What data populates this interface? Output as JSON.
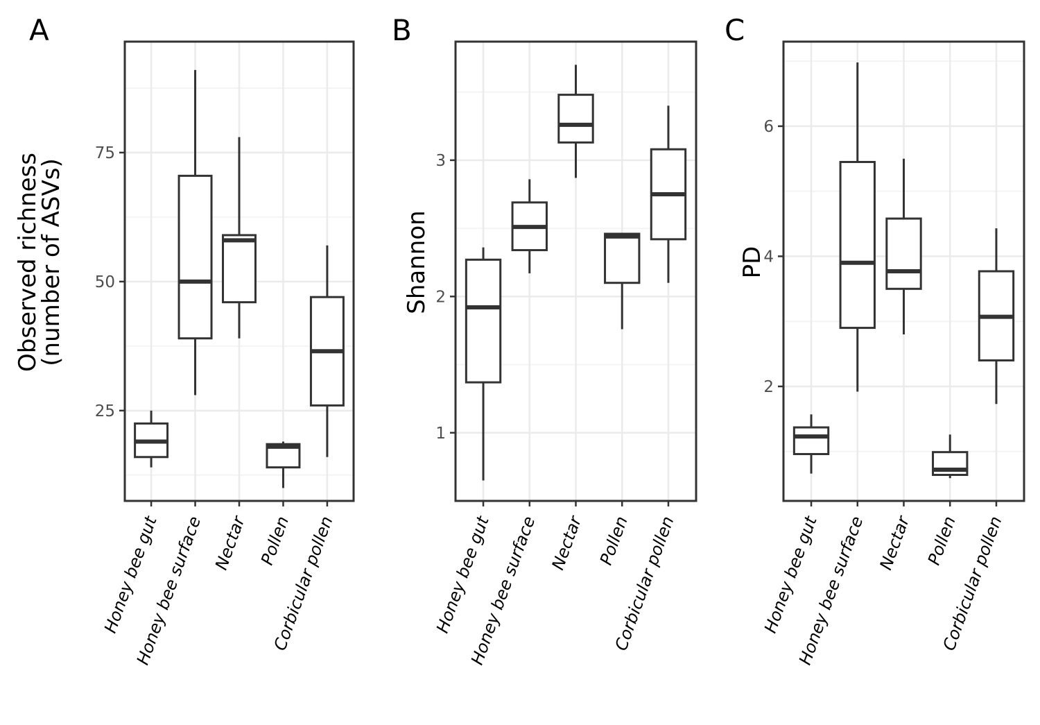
{
  "chart_data": [
    {
      "type": "box",
      "panel": "A",
      "ylabel_lines": [
        "Observed richness",
        "(number of ASVs)"
      ],
      "ylim": [
        7.5,
        96.5
      ],
      "yticks": [
        25,
        50,
        75
      ],
      "ytick_labels": [
        "25",
        "50",
        "75"
      ],
      "categories": [
        "Honey bee gut",
        "Honey bee surface",
        "Nectar",
        "Pollen",
        "Corbicular pollen"
      ],
      "boxes": [
        {
          "min": 14,
          "q1": 16,
          "median": 19,
          "q3": 22.5,
          "max": 25
        },
        {
          "min": 28,
          "q1": 39,
          "median": 50,
          "q3": 70.5,
          "max": 91
        },
        {
          "min": 39,
          "q1": 46,
          "median": 58,
          "q3": 59,
          "max": 78
        },
        {
          "min": 10,
          "q1": 14,
          "median": 18,
          "q3": 18.5,
          "max": 19
        },
        {
          "min": 16,
          "q1": 26,
          "median": 36.5,
          "q3": 47,
          "max": 57
        }
      ]
    },
    {
      "type": "box",
      "panel": "B",
      "ylabel_lines": [
        "Shannon"
      ],
      "ylim": [
        0.5,
        3.87
      ],
      "yticks": [
        1,
        2,
        3
      ],
      "ytick_labels": [
        "1",
        "2",
        "3"
      ],
      "categories": [
        "Honey bee gut",
        "Honey bee surface",
        "Nectar",
        "Pollen",
        "Corbicular pollen"
      ],
      "boxes": [
        {
          "min": 0.65,
          "q1": 1.37,
          "median": 1.92,
          "q3": 2.27,
          "max": 2.36
        },
        {
          "min": 2.17,
          "q1": 2.34,
          "median": 2.51,
          "q3": 2.69,
          "max": 2.86
        },
        {
          "min": 2.87,
          "q1": 3.13,
          "median": 3.26,
          "q3": 3.48,
          "max": 3.7
        },
        {
          "min": 1.76,
          "q1": 2.1,
          "median": 2.44,
          "q3": 2.46,
          "max": 2.46
        },
        {
          "min": 2.1,
          "q1": 2.42,
          "median": 2.75,
          "q3": 3.08,
          "max": 3.4
        }
      ]
    },
    {
      "type": "box",
      "panel": "C",
      "ylabel_lines": [
        "PD"
      ],
      "ylim": [
        0.24,
        7.3
      ],
      "yticks": [
        2,
        4,
        6
      ],
      "ytick_labels": [
        "2",
        "4",
        "6"
      ],
      "categories": [
        "Honey bee gut",
        "Honey bee surface",
        "Nectar",
        "Pollen",
        "Corbicular pollen"
      ],
      "boxes": [
        {
          "min": 0.66,
          "q1": 0.96,
          "median": 1.23,
          "q3": 1.37,
          "max": 1.57
        },
        {
          "min": 1.92,
          "q1": 2.9,
          "median": 3.9,
          "q3": 5.45,
          "max": 6.98
        },
        {
          "min": 2.8,
          "q1": 3.5,
          "median": 3.77,
          "q3": 4.58,
          "max": 5.5
        },
        {
          "min": 0.59,
          "q1": 0.64,
          "median": 0.72,
          "q3": 0.99,
          "max": 1.26
        },
        {
          "min": 1.73,
          "q1": 2.4,
          "median": 3.07,
          "q3": 3.77,
          "max": 4.43
        }
      ]
    }
  ]
}
